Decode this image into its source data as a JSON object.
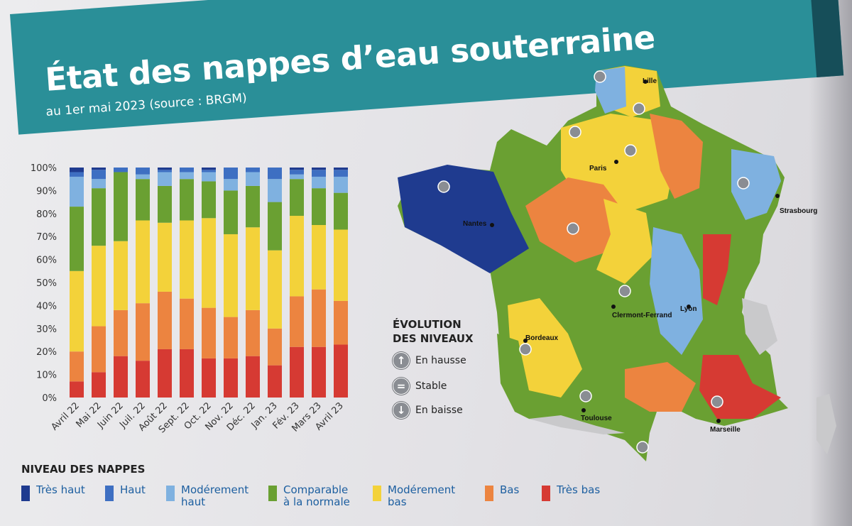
{
  "header": {
    "title": "État des nappes d’eau souterraine",
    "subtitle": "au 1er mai 2023 (source : BRGM)"
  },
  "colors": {
    "band": "#2a8f98",
    "tres_haut": "#1f3b8f",
    "haut": "#3e6fc2",
    "moderement_haut": "#7fb1e0",
    "comparable": "#6aa032",
    "moderement_bas": "#f3d23a",
    "bas": "#ec8440",
    "tres_bas": "#d63a33"
  },
  "chart_data": {
    "type": "bar",
    "stacked": true,
    "categories": [
      "Avril 22",
      "Mai 22",
      "Juin 22",
      "Juil. 22",
      "Août 22",
      "Sept. 22",
      "Oct. 22",
      "Nov. 22",
      "Déc. 22",
      "Jan. 23",
      "Fév. 23",
      "Mars 23",
      "Avril 23"
    ],
    "yticks": [
      "0%",
      "10%",
      "20%",
      "30%",
      "40%",
      "50%",
      "60%",
      "70%",
      "80%",
      "90%",
      "100%"
    ],
    "ylim": [
      0,
      100
    ],
    "series": [
      {
        "name": "Très bas",
        "color": "#d63a33",
        "values": [
          7,
          11,
          18,
          16,
          21,
          21,
          17,
          17,
          18,
          14,
          22,
          22,
          23
        ]
      },
      {
        "name": "Bas",
        "color": "#ec8440",
        "values": [
          13,
          20,
          20,
          25,
          25,
          22,
          22,
          18,
          20,
          16,
          22,
          25,
          19
        ]
      },
      {
        "name": "Modérement bas",
        "color": "#f3d23a",
        "values": [
          35,
          35,
          30,
          36,
          30,
          34,
          39,
          36,
          36,
          34,
          35,
          28,
          31
        ]
      },
      {
        "name": "Comparable à la normale",
        "color": "#6aa032",
        "values": [
          28,
          25,
          30,
          18,
          16,
          18,
          16,
          19,
          18,
          21,
          16,
          16,
          16
        ]
      },
      {
        "name": "Modérement haut",
        "color": "#7fb1e0",
        "values": [
          13,
          4,
          0,
          2,
          6,
          3,
          4,
          5,
          6,
          10,
          2,
          5,
          7
        ]
      },
      {
        "name": "Haut",
        "color": "#3e6fc2",
        "values": [
          2,
          4,
          2,
          3,
          1,
          2,
          1,
          5,
          2,
          5,
          2,
          3,
          3
        ]
      },
      {
        "name": "Très haut",
        "color": "#1f3b8f",
        "values": [
          2,
          1,
          0,
          0,
          1,
          0,
          1,
          0,
          0,
          0,
          1,
          1,
          1
        ]
      }
    ]
  },
  "legend": {
    "title": "NIVEAU DES NAPPES",
    "items": [
      {
        "label": "Très haut",
        "color": "#1f3b8f"
      },
      {
        "label": "Haut",
        "color": "#3e6fc2"
      },
      {
        "label": "Modérement\nhaut",
        "color": "#7fb1e0"
      },
      {
        "label": "Comparable\nà la normale",
        "color": "#6aa032"
      },
      {
        "label": "Modérement\nbas",
        "color": "#f3d23a"
      },
      {
        "label": "Bas",
        "color": "#ec8440"
      },
      {
        "label": "Très bas",
        "color": "#d63a33"
      }
    ]
  },
  "map": {
    "evolution_title": "ÉVOLUTION\nDES NIVEAUX",
    "evolution_items": [
      {
        "icon": "arrow-up-icon",
        "glyph": "↑",
        "label": "En hausse"
      },
      {
        "icon": "equals-icon",
        "glyph": "=",
        "label": "Stable"
      },
      {
        "icon": "arrow-down-icon",
        "glyph": "↓",
        "label": "En baisse"
      }
    ],
    "cities": [
      "Lille",
      "Paris",
      "Strasbourg",
      "Nantes",
      "Clermont-Ferrand",
      "Lyon",
      "Bordeaux",
      "Toulouse",
      "Marseille"
    ]
  }
}
